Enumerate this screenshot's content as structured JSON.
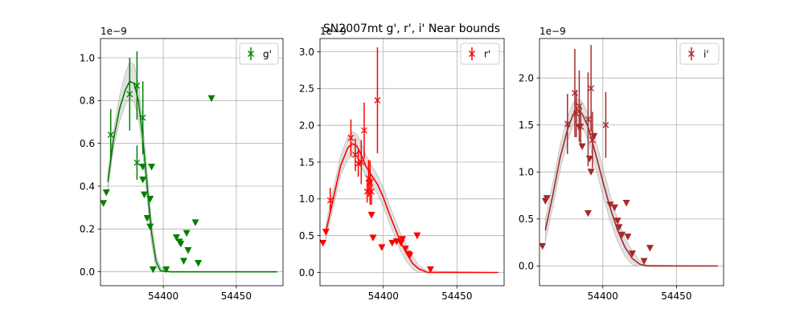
{
  "figure": {
    "title": "SN2007mt  g', r', i' Near bounds"
  },
  "chart_data": [
    {
      "type": "scatter",
      "panel": "g",
      "color": "#008000",
      "offset_text": "1e−9",
      "xlim": [
        54357,
        54482
      ],
      "ylim": [
        -0.065,
        1.09
      ],
      "xticks": [
        54400,
        54450
      ],
      "yticks": [
        0.0,
        0.2,
        0.4,
        0.6,
        0.8,
        1.0
      ],
      "grid": true,
      "legend": {
        "label": "g'",
        "position": "top-right"
      },
      "fit_curve": [
        [
          54362,
          0.42
        ],
        [
          54366,
          0.62
        ],
        [
          54370,
          0.76
        ],
        [
          54374,
          0.85
        ],
        [
          54377,
          0.89
        ],
        [
          54380,
          0.88
        ],
        [
          54383,
          0.8
        ],
        [
          54386,
          0.62
        ],
        [
          54389,
          0.4
        ],
        [
          54392,
          0.18
        ],
        [
          54395,
          0.05
        ],
        [
          54398,
          0.005
        ],
        [
          54405,
          0.0
        ],
        [
          54478,
          0.0
        ]
      ],
      "band_upper": [
        [
          54362,
          0.46
        ],
        [
          54366,
          0.66
        ],
        [
          54370,
          0.82
        ],
        [
          54374,
          0.93
        ],
        [
          54377,
          0.98
        ],
        [
          54380,
          0.97
        ],
        [
          54383,
          0.88
        ],
        [
          54386,
          0.69
        ],
        [
          54389,
          0.46
        ],
        [
          54392,
          0.23
        ],
        [
          54395,
          0.08
        ],
        [
          54398,
          0.02
        ],
        [
          54405,
          0.0
        ],
        [
          54478,
          0.0
        ]
      ],
      "band_lower": [
        [
          54362,
          0.38
        ],
        [
          54366,
          0.58
        ],
        [
          54370,
          0.7
        ],
        [
          54374,
          0.78
        ],
        [
          54377,
          0.81
        ],
        [
          54380,
          0.79
        ],
        [
          54383,
          0.72
        ],
        [
          54386,
          0.55
        ],
        [
          54389,
          0.34
        ],
        [
          54392,
          0.13
        ],
        [
          54395,
          0.02
        ],
        [
          54398,
          0.0
        ],
        [
          54405,
          0.0
        ],
        [
          54478,
          0.0
        ]
      ],
      "detections": [
        {
          "x": 54364,
          "y": 0.64,
          "err": 0.12
        },
        {
          "x": 54377,
          "y": 0.83,
          "err": 0.17
        },
        {
          "x": 54382,
          "y": 0.51,
          "err": 0.08
        },
        {
          "x": 54382,
          "y": 0.87,
          "err": 0.16
        },
        {
          "x": 54386,
          "y": 0.72,
          "err": 0.17
        }
      ],
      "upper_limits": [
        [
          54359,
          0.32
        ],
        [
          54361,
          0.37
        ],
        [
          54386,
          0.49
        ],
        [
          54386,
          0.43
        ],
        [
          54387,
          0.36
        ],
        [
          54389,
          0.25
        ],
        [
          54391,
          0.34
        ],
        [
          54391,
          0.21
        ],
        [
          54392,
          0.49
        ],
        [
          54393,
          0.01
        ],
        [
          54402,
          0.01
        ],
        [
          54409,
          0.16
        ],
        [
          54411,
          0.14
        ],
        [
          54412,
          0.13
        ],
        [
          54414,
          0.05
        ],
        [
          54416,
          0.18
        ],
        [
          54417,
          0.1
        ],
        [
          54422,
          0.23
        ],
        [
          54424,
          0.04
        ],
        [
          54433,
          0.81
        ]
      ]
    },
    {
      "type": "scatter",
      "panel": "r",
      "color": "#ff0000",
      "offset_text": "1e−9",
      "xlim": [
        54357,
        54482
      ],
      "ylim": [
        -0.18,
        3.18
      ],
      "xticks": [
        54400,
        54450
      ],
      "yticks": [
        0.0,
        0.5,
        1.0,
        1.5,
        2.0,
        2.5,
        3.0
      ],
      "grid": true,
      "legend": {
        "label": "r'",
        "position": "top-right"
      },
      "fit_curve": [
        [
          54361,
          0.55
        ],
        [
          54366,
          1.0
        ],
        [
          54371,
          1.45
        ],
        [
          54376,
          1.7
        ],
        [
          54379,
          1.75
        ],
        [
          54382,
          1.72
        ],
        [
          54385,
          1.6
        ],
        [
          54388,
          1.45
        ],
        [
          54392,
          1.32
        ],
        [
          54396,
          1.2
        ],
        [
          54400,
          1.02
        ],
        [
          54404,
          0.8
        ],
        [
          54408,
          0.6
        ],
        [
          54412,
          0.4
        ],
        [
          54416,
          0.25
        ],
        [
          54420,
          0.12
        ],
        [
          54424,
          0.05
        ],
        [
          54430,
          0.0
        ],
        [
          54478,
          0.0
        ]
      ],
      "band_upper": [
        [
          54361,
          0.65
        ],
        [
          54366,
          1.12
        ],
        [
          54371,
          1.58
        ],
        [
          54376,
          1.86
        ],
        [
          54379,
          1.92
        ],
        [
          54382,
          1.88
        ],
        [
          54385,
          1.76
        ],
        [
          54388,
          1.6
        ],
        [
          54392,
          1.46
        ],
        [
          54396,
          1.33
        ],
        [
          54400,
          1.15
        ],
        [
          54404,
          0.92
        ],
        [
          54408,
          0.72
        ],
        [
          54412,
          0.52
        ],
        [
          54416,
          0.36
        ],
        [
          54420,
          0.22
        ],
        [
          54424,
          0.1
        ],
        [
          54430,
          0.02
        ],
        [
          54478,
          0.0
        ]
      ],
      "band_lower": [
        [
          54361,
          0.45
        ],
        [
          54366,
          0.88
        ],
        [
          54371,
          1.32
        ],
        [
          54376,
          1.54
        ],
        [
          54379,
          1.58
        ],
        [
          54382,
          1.56
        ],
        [
          54385,
          1.44
        ],
        [
          54388,
          1.3
        ],
        [
          54392,
          1.18
        ],
        [
          54396,
          1.07
        ],
        [
          54400,
          0.89
        ],
        [
          54404,
          0.68
        ],
        [
          54408,
          0.48
        ],
        [
          54412,
          0.28
        ],
        [
          54416,
          0.14
        ],
        [
          54420,
          0.04
        ],
        [
          54424,
          0.0
        ],
        [
          54430,
          0.0
        ],
        [
          54478,
          0.0
        ]
      ],
      "detections": [
        {
          "x": 54364,
          "y": 0.98,
          "err": 0.17
        },
        {
          "x": 54378,
          "y": 1.83,
          "err": 0.25
        },
        {
          "x": 54381,
          "y": 1.6,
          "err": 0.22
        },
        {
          "x": 54383,
          "y": 1.48,
          "err": 0.18
        },
        {
          "x": 54385,
          "y": 1.5,
          "err": 0.3
        },
        {
          "x": 54387,
          "y": 1.93,
          "err": 0.38
        },
        {
          "x": 54389,
          "y": 1.1,
          "err": 0.15
        },
        {
          "x": 54390,
          "y": 1.28,
          "err": 0.25
        },
        {
          "x": 54391,
          "y": 1.22,
          "err": 0.3
        },
        {
          "x": 54392,
          "y": 1.1,
          "err": 0.18
        },
        {
          "x": 54396,
          "y": 2.34,
          "err": 0.72
        }
      ],
      "upper_limits": [
        [
          54359,
          0.4
        ],
        [
          54361,
          0.55
        ],
        [
          54392,
          0.78
        ],
        [
          54393,
          0.47
        ],
        [
          54399,
          0.34
        ],
        [
          54406,
          0.4
        ],
        [
          54409,
          0.42
        ],
        [
          54412,
          0.4
        ],
        [
          54413,
          0.45
        ],
        [
          54415,
          0.32
        ],
        [
          54417,
          0.25
        ],
        [
          54418,
          0.23
        ],
        [
          54423,
          0.5
        ],
        [
          54432,
          0.04
        ]
      ]
    },
    {
      "type": "scatter",
      "panel": "i",
      "color": "#a52a2a",
      "offset_text": "1e−9",
      "xlim": [
        54357,
        54482
      ],
      "ylim": [
        -0.21,
        2.42
      ],
      "xticks": [
        54400,
        54450
      ],
      "yticks": [
        0.0,
        0.5,
        1.0,
        1.5,
        2.0
      ],
      "grid": true,
      "legend": {
        "label": "i'",
        "position": "top-right"
      },
      "fit_curve": [
        [
          54361,
          0.38
        ],
        [
          54366,
          0.75
        ],
        [
          54371,
          1.15
        ],
        [
          54376,
          1.45
        ],
        [
          54380,
          1.62
        ],
        [
          54383,
          1.66
        ],
        [
          54386,
          1.62
        ],
        [
          54390,
          1.48
        ],
        [
          54395,
          1.2
        ],
        [
          54400,
          0.9
        ],
        [
          54405,
          0.62
        ],
        [
          54410,
          0.38
        ],
        [
          54415,
          0.2
        ],
        [
          54420,
          0.08
        ],
        [
          54425,
          0.02
        ],
        [
          54430,
          0.0
        ],
        [
          54478,
          0.0
        ]
      ],
      "band_upper": [
        [
          54361,
          0.5
        ],
        [
          54366,
          0.88
        ],
        [
          54371,
          1.28
        ],
        [
          54376,
          1.58
        ],
        [
          54380,
          1.74
        ],
        [
          54383,
          1.78
        ],
        [
          54386,
          1.75
        ],
        [
          54390,
          1.62
        ],
        [
          54395,
          1.35
        ],
        [
          54400,
          1.05
        ],
        [
          54405,
          0.76
        ],
        [
          54410,
          0.5
        ],
        [
          54415,
          0.3
        ],
        [
          54420,
          0.16
        ],
        [
          54425,
          0.06
        ],
        [
          54430,
          0.01
        ],
        [
          54478,
          0.0
        ]
      ],
      "band_lower": [
        [
          54361,
          0.26
        ],
        [
          54366,
          0.62
        ],
        [
          54371,
          1.02
        ],
        [
          54376,
          1.32
        ],
        [
          54380,
          1.5
        ],
        [
          54383,
          1.54
        ],
        [
          54386,
          1.49
        ],
        [
          54390,
          1.34
        ],
        [
          54395,
          1.05
        ],
        [
          54400,
          0.75
        ],
        [
          54405,
          0.48
        ],
        [
          54410,
          0.26
        ],
        [
          54415,
          0.1
        ],
        [
          54420,
          0.01
        ],
        [
          54425,
          0.0
        ],
        [
          54430,
          0.0
        ],
        [
          54478,
          0.0
        ]
      ],
      "detections": [
        {
          "x": 54376,
          "y": 1.51,
          "err": 0.32
        },
        {
          "x": 54381,
          "y": 1.84,
          "err": 0.47
        },
        {
          "x": 54382,
          "y": 1.62,
          "err": 0.25
        },
        {
          "x": 54384,
          "y": 1.7,
          "err": 0.38
        },
        {
          "x": 54385,
          "y": 1.48,
          "err": 0.22
        },
        {
          "x": 54390,
          "y": 1.56,
          "err": 0.5
        },
        {
          "x": 54392,
          "y": 1.89,
          "err": 0.46
        },
        {
          "x": 54393,
          "y": 1.34,
          "err": 0.3
        },
        {
          "x": 54402,
          "y": 1.5,
          "err": 0.35
        }
      ],
      "upper_limits": [
        [
          54359,
          0.21
        ],
        [
          54361,
          0.69
        ],
        [
          54362,
          0.72
        ],
        [
          54384,
          1.48
        ],
        [
          54386,
          1.27
        ],
        [
          54390,
          0.56
        ],
        [
          54391,
          1.14
        ],
        [
          54392,
          1.0
        ],
        [
          54394,
          1.38
        ],
        [
          54405,
          0.65
        ],
        [
          54408,
          0.62
        ],
        [
          54410,
          0.48
        ],
        [
          54411,
          0.41
        ],
        [
          54413,
          0.33
        ],
        [
          54416,
          0.67
        ],
        [
          54417,
          0.31
        ],
        [
          54420,
          0.13
        ],
        [
          54428,
          0.05
        ],
        [
          54432,
          0.19
        ]
      ]
    }
  ]
}
